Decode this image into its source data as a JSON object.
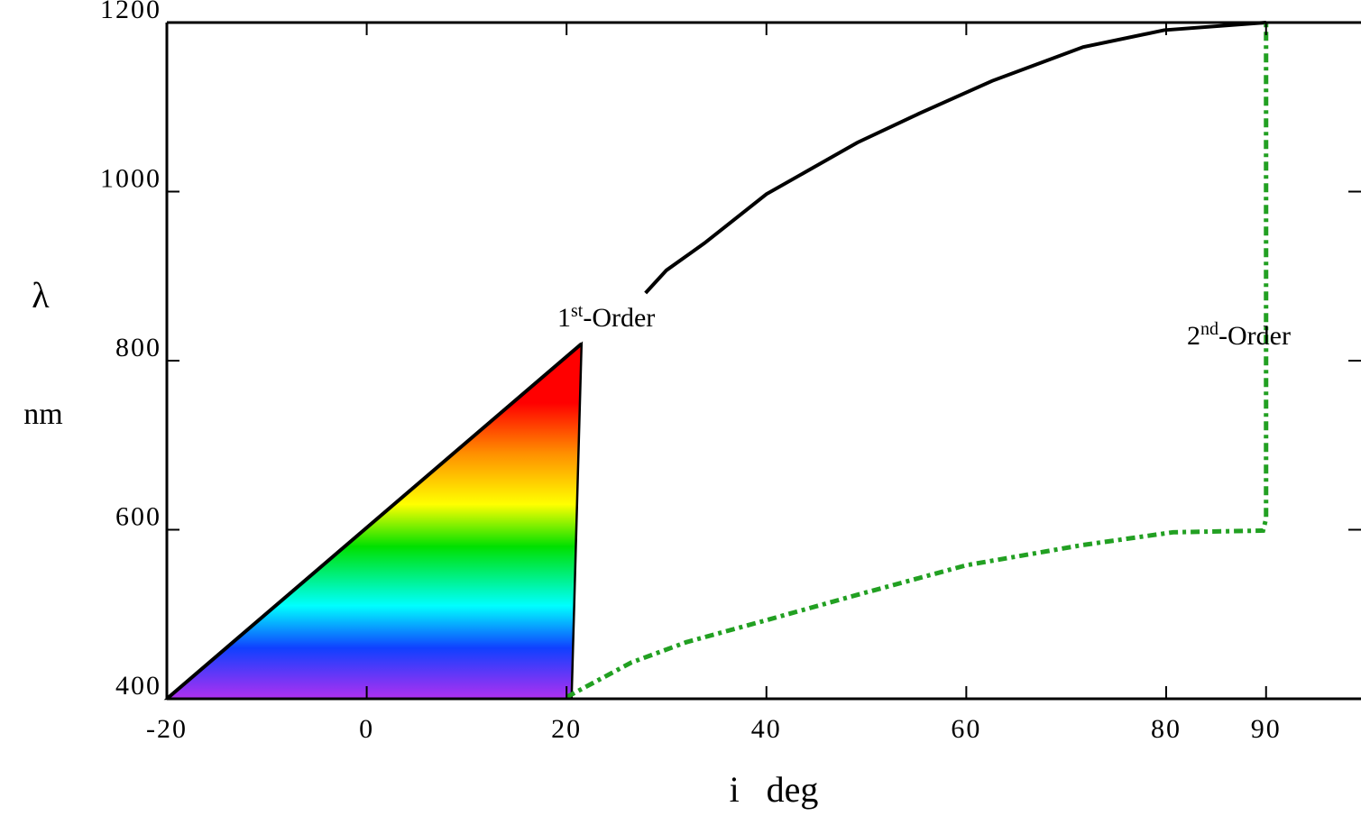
{
  "chart_data": {
    "type": "line",
    "y_label": "λ",
    "y_unit": "nm",
    "x_label": "i   deg",
    "xlim": [
      -20,
      99.5
    ],
    "ylim": [
      400,
      1200
    ],
    "xticks": [
      {
        "value": -20,
        "label": "-20"
      },
      0,
      20,
      40,
      60,
      80,
      90
    ],
    "yticks": [
      400,
      600,
      800,
      1000,
      1200
    ],
    "series": [
      {
        "name": [
          "1",
          "st",
          "-Order"
        ],
        "color": "#000000",
        "dash": "none",
        "x": [
          -20,
          21.5,
          24,
          27.9,
          30,
          33.8,
          40,
          49.1,
          55.4,
          62.6,
          71.7,
          79.8,
          90
        ],
        "values": [
          400,
          820,
          null,
          880,
          907,
          939,
          997,
          1058,
          1093,
          1131,
          1171,
          1191,
          1200
        ]
      },
      {
        "name": [
          "2",
          "nd",
          "-Order"
        ],
        "color": "#22a022",
        "dash": "10 5 4 5",
        "x": [
          20,
          26.5,
          32,
          40,
          49.1,
          60,
          71.7,
          80.7,
          89.7,
          90,
          90
        ],
        "values": [
          402,
          443,
          467,
          493,
          523,
          558,
          582,
          597,
          599,
          613,
          1200
        ]
      }
    ],
    "spectrum": {
      "x": [
        -20,
        21.5,
        20.5
      ],
      "values": [
        400,
        820,
        400
      ],
      "gradient": [
        {
          "value": 400,
          "color": "#b030f0"
        },
        {
          "value": 460,
          "color": "#1040ff"
        },
        {
          "value": 510,
          "color": "#00ffff"
        },
        {
          "value": 580,
          "color": "#00e000"
        },
        {
          "value": 630,
          "color": "#ffff00"
        },
        {
          "value": 690,
          "color": "#ff9000"
        },
        {
          "value": 750,
          "color": "#ff0000"
        },
        {
          "value": 820,
          "color": "#ff0000"
        }
      ]
    }
  }
}
